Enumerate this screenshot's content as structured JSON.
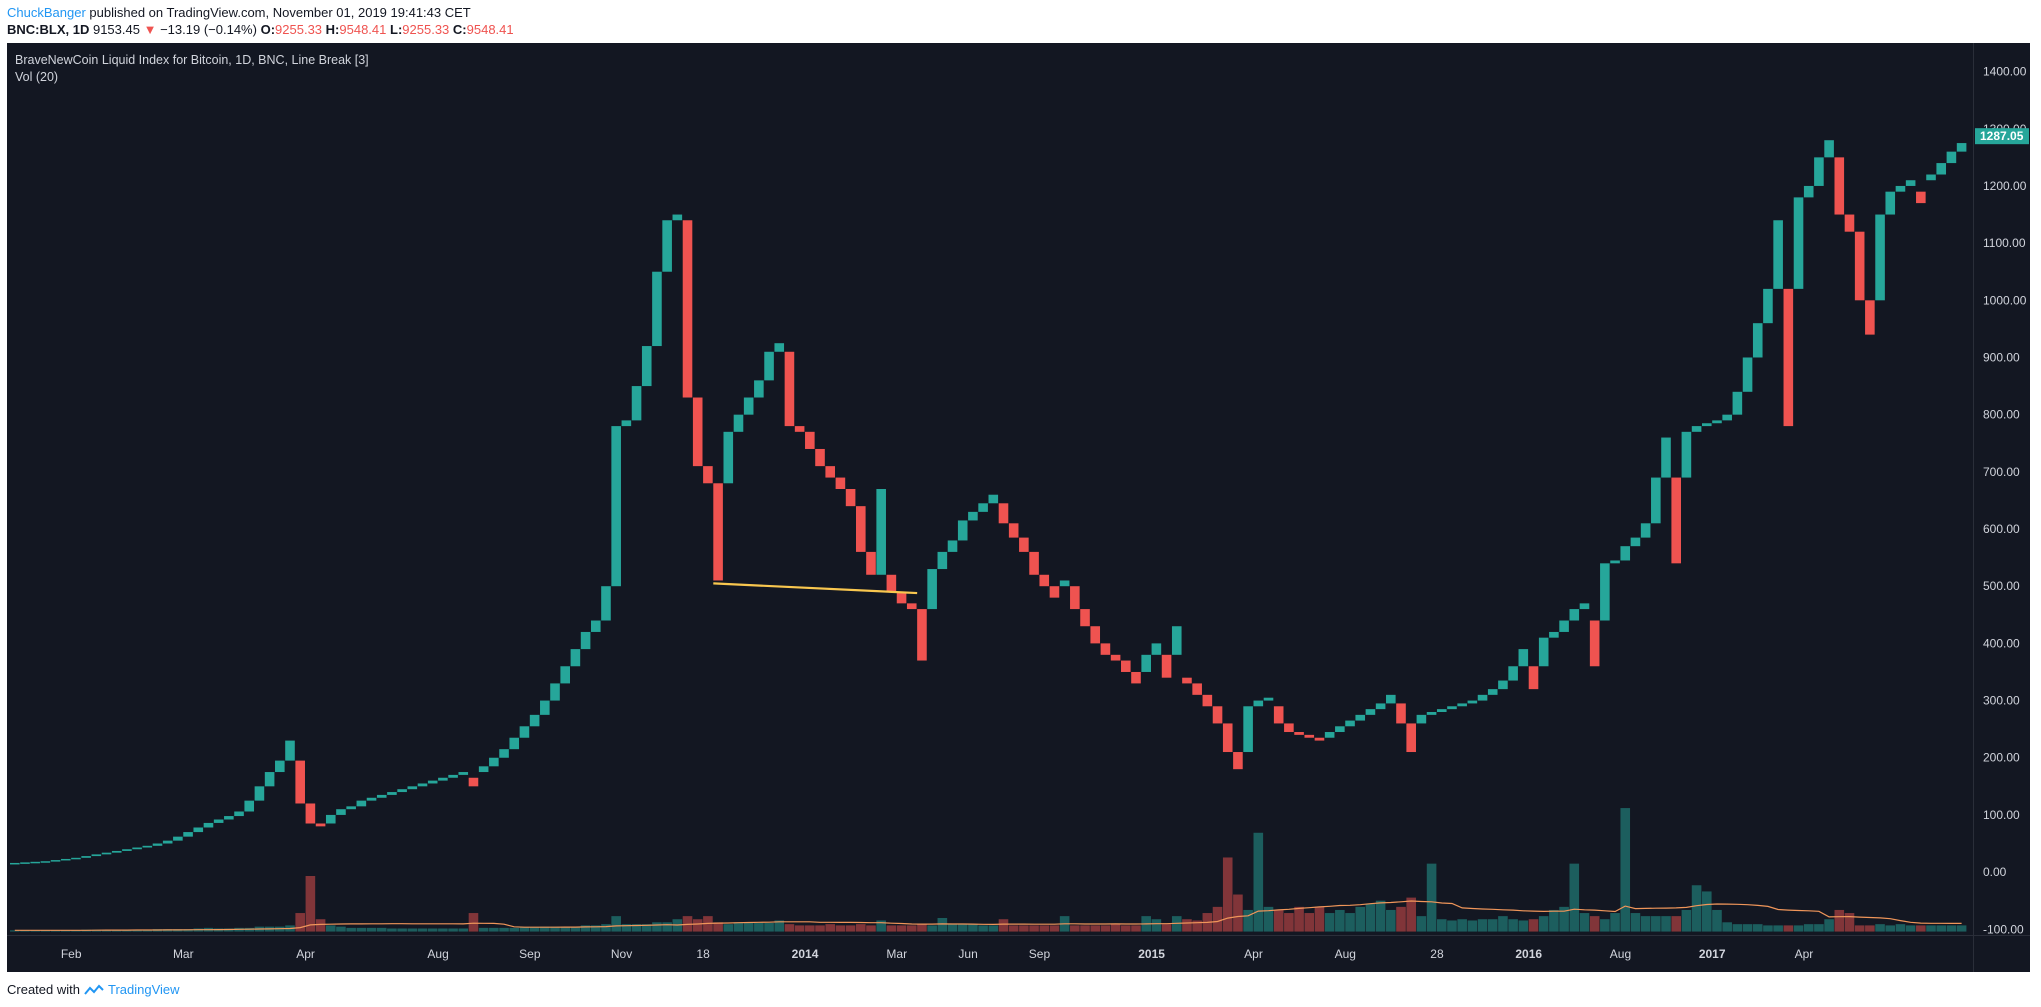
{
  "header": {
    "author": "ChuckBanger",
    "published_text": "published on TradingView.com, November 01, 2019 19:41:43 CET",
    "symbol": "BNC:BLX, 1D",
    "last_price": "9153.45",
    "change_arrow": "▼",
    "change": "−13.19 (−0.14%)",
    "open_label": "O:",
    "open_value": "9255.33",
    "high_label": "H:",
    "high_value": "9548.41",
    "low_label": "L:",
    "low_value": "9255.33",
    "close_label": "C:",
    "close_value": "9548.41"
  },
  "legend": {
    "title": "BraveNewCoin Liquid Index for Bitcoin, 1D, BNC, Line Break [3]",
    "volume": "Vol (20)"
  },
  "footer": {
    "created_with": "Created with",
    "brand": "TradingView"
  },
  "colors": {
    "background": "#131722",
    "up": "#26a69a",
    "down": "#ef5350",
    "trendline": "#f9c74f",
    "volume_ma": "#f0965a",
    "axis_text": "#d1d4dc",
    "price_tag": "#26a69a"
  },
  "chart_data": {
    "type": "line-break",
    "title": "BraveNewCoin Liquid Index for Bitcoin, 1D, BNC, Line Break [3]",
    "ylim": [
      -110,
      1450
    ],
    "y_ticks": [
      "1400.00",
      "1300.00",
      "1200.00",
      "1100.00",
      "1000.00",
      "900.00",
      "800.00",
      "700.00",
      "600.00",
      "500.00",
      "400.00",
      "300.00",
      "200.00",
      "100.00",
      "0.00",
      "-100.00"
    ],
    "y_tick_values": [
      1400,
      1300,
      1200,
      1100,
      1000,
      900,
      800,
      700,
      600,
      500,
      400,
      300,
      200,
      100,
      0,
      -100
    ],
    "x_labels": [
      "Feb",
      "Mar",
      "Apr",
      "Aug",
      "Sep",
      "Nov",
      "18",
      "2014",
      "Mar",
      "Jun",
      "Sep",
      "2015",
      "Apr",
      "Aug",
      "28",
      "2016",
      "Aug",
      "2017",
      "Apr"
    ],
    "x_label_bricks": [
      6,
      17,
      29,
      42,
      51,
      60,
      68,
      78,
      87,
      94,
      101,
      112,
      122,
      131,
      140,
      149,
      158,
      167,
      176
    ],
    "last_price_tag": "1287.05",
    "last_price_value": 1287.05,
    "trendline": {
      "start_brick": 69,
      "start_value": 505,
      "end_brick": 89,
      "end_value": 488
    },
    "bricks": [
      [
        "up",
        15,
        16
      ],
      [
        "up",
        16,
        17
      ],
      [
        "up",
        17,
        18
      ],
      [
        "up",
        18,
        19
      ],
      [
        "up",
        19,
        21
      ],
      [
        "up",
        21,
        23
      ],
      [
        "up",
        23,
        25
      ],
      [
        "up",
        25,
        28
      ],
      [
        "up",
        28,
        31
      ],
      [
        "up",
        31,
        34
      ],
      [
        "up",
        34,
        37
      ],
      [
        "up",
        37,
        40
      ],
      [
        "up",
        40,
        43
      ],
      [
        "up",
        43,
        46
      ],
      [
        "up",
        46,
        50
      ],
      [
        "up",
        50,
        55
      ],
      [
        "up",
        55,
        62
      ],
      [
        "up",
        62,
        70
      ],
      [
        "up",
        70,
        78
      ],
      [
        "up",
        78,
        86
      ],
      [
        "up",
        86,
        92
      ],
      [
        "up",
        92,
        98
      ],
      [
        "up",
        98,
        106
      ],
      [
        "up",
        106,
        125
      ],
      [
        "up",
        125,
        150
      ],
      [
        "up",
        150,
        175
      ],
      [
        "up",
        175,
        195
      ],
      [
        "up",
        195,
        230
      ],
      [
        "down",
        195,
        120
      ],
      [
        "down",
        120,
        85
      ],
      [
        "down",
        85,
        80
      ],
      [
        "up",
        85,
        100
      ],
      [
        "up",
        100,
        110
      ],
      [
        "up",
        110,
        115
      ],
      [
        "up",
        115,
        125
      ],
      [
        "up",
        125,
        130
      ],
      [
        "up",
        130,
        135
      ],
      [
        "up",
        135,
        140
      ],
      [
        "up",
        140,
        145
      ],
      [
        "up",
        145,
        150
      ],
      [
        "up",
        150,
        155
      ],
      [
        "up",
        155,
        160
      ],
      [
        "up",
        160,
        165
      ],
      [
        "up",
        165,
        170
      ],
      [
        "up",
        170,
        175
      ],
      [
        "down",
        165,
        150
      ],
      [
        "up",
        175,
        185
      ],
      [
        "up",
        185,
        200
      ],
      [
        "up",
        200,
        215
      ],
      [
        "up",
        215,
        235
      ],
      [
        "up",
        235,
        255
      ],
      [
        "up",
        255,
        275
      ],
      [
        "up",
        275,
        300
      ],
      [
        "up",
        300,
        330
      ],
      [
        "up",
        330,
        360
      ],
      [
        "up",
        360,
        390
      ],
      [
        "up",
        390,
        420
      ],
      [
        "up",
        420,
        440
      ],
      [
        "up",
        440,
        500
      ],
      [
        "up",
        500,
        780
      ],
      [
        "up",
        780,
        790
      ],
      [
        "up",
        790,
        850
      ],
      [
        "up",
        850,
        920
      ],
      [
        "up",
        920,
        1050
      ],
      [
        "up",
        1050,
        1140
      ],
      [
        "up",
        1140,
        1150
      ],
      [
        "down",
        1140,
        830
      ],
      [
        "down",
        830,
        710
      ],
      [
        "down",
        710,
        680
      ],
      [
        "down",
        680,
        510
      ],
      [
        "up",
        680,
        770
      ],
      [
        "up",
        770,
        800
      ],
      [
        "up",
        800,
        830
      ],
      [
        "up",
        830,
        860
      ],
      [
        "up",
        860,
        910
      ],
      [
        "up",
        910,
        925
      ],
      [
        "down",
        910,
        780
      ],
      [
        "down",
        780,
        770
      ],
      [
        "down",
        770,
        740
      ],
      [
        "down",
        740,
        710
      ],
      [
        "down",
        710,
        690
      ],
      [
        "down",
        690,
        670
      ],
      [
        "down",
        670,
        640
      ],
      [
        "down",
        640,
        560
      ],
      [
        "down",
        560,
        520
      ],
      [
        "up",
        520,
        670
      ],
      [
        "down",
        520,
        490
      ],
      [
        "down",
        490,
        470
      ],
      [
        "down",
        470,
        460
      ],
      [
        "down",
        460,
        370
      ],
      [
        "up",
        460,
        530
      ],
      [
        "up",
        530,
        560
      ],
      [
        "up",
        560,
        580
      ],
      [
        "up",
        580,
        615
      ],
      [
        "up",
        615,
        630
      ],
      [
        "up",
        630,
        645
      ],
      [
        "up",
        645,
        660
      ],
      [
        "down",
        645,
        610
      ],
      [
        "down",
        610,
        585
      ],
      [
        "down",
        585,
        560
      ],
      [
        "down",
        560,
        520
      ],
      [
        "down",
        520,
        500
      ],
      [
        "down",
        500,
        480
      ],
      [
        "up",
        500,
        510
      ],
      [
        "down",
        500,
        460
      ],
      [
        "down",
        460,
        430
      ],
      [
        "down",
        430,
        400
      ],
      [
        "down",
        400,
        380
      ],
      [
        "down",
        380,
        370
      ],
      [
        "down",
        370,
        350
      ],
      [
        "down",
        350,
        330
      ],
      [
        "up",
        350,
        380
      ],
      [
        "up",
        380,
        400
      ],
      [
        "down",
        380,
        340
      ],
      [
        "up",
        380,
        430
      ],
      [
        "down",
        340,
        330
      ],
      [
        "down",
        330,
        310
      ],
      [
        "down",
        310,
        290
      ],
      [
        "down",
        290,
        260
      ],
      [
        "down",
        260,
        210
      ],
      [
        "down",
        210,
        180
      ],
      [
        "up",
        210,
        290
      ],
      [
        "up",
        290,
        300
      ],
      [
        "up",
        300,
        305
      ],
      [
        "down",
        290,
        260
      ],
      [
        "down",
        260,
        245
      ],
      [
        "down",
        245,
        240
      ],
      [
        "down",
        240,
        235
      ],
      [
        "down",
        235,
        230
      ],
      [
        "up",
        235,
        245
      ],
      [
        "up",
        245,
        255
      ],
      [
        "up",
        255,
        265
      ],
      [
        "up",
        265,
        275
      ],
      [
        "up",
        275,
        285
      ],
      [
        "up",
        285,
        295
      ],
      [
        "up",
        295,
        310
      ],
      [
        "down",
        295,
        260
      ],
      [
        "down",
        260,
        210
      ],
      [
        "up",
        260,
        275
      ],
      [
        "up",
        275,
        280
      ],
      [
        "up",
        280,
        285
      ],
      [
        "up",
        285,
        290
      ],
      [
        "up",
        290,
        295
      ],
      [
        "up",
        295,
        300
      ],
      [
        "up",
        300,
        310
      ],
      [
        "up",
        310,
        320
      ],
      [
        "up",
        320,
        335
      ],
      [
        "up",
        335,
        360
      ],
      [
        "up",
        360,
        390
      ],
      [
        "down",
        360,
        320
      ],
      [
        "up",
        360,
        410
      ],
      [
        "up",
        410,
        420
      ],
      [
        "up",
        420,
        440
      ],
      [
        "up",
        440,
        460
      ],
      [
        "up",
        460,
        470
      ],
      [
        "down",
        440,
        360
      ],
      [
        "up",
        440,
        540
      ],
      [
        "up",
        540,
        545
      ],
      [
        "up",
        545,
        570
      ],
      [
        "up",
        570,
        585
      ],
      [
        "up",
        585,
        610
      ],
      [
        "up",
        610,
        690
      ],
      [
        "up",
        690,
        760
      ],
      [
        "down",
        690,
        540
      ],
      [
        "up",
        690,
        770
      ],
      [
        "up",
        770,
        780
      ],
      [
        "up",
        780,
        785
      ],
      [
        "up",
        785,
        790
      ],
      [
        "up",
        790,
        800
      ],
      [
        "up",
        800,
        840
      ],
      [
        "up",
        840,
        900
      ],
      [
        "up",
        900,
        960
      ],
      [
        "up",
        960,
        1020
      ],
      [
        "up",
        1020,
        1140
      ],
      [
        "down",
        1020,
        780
      ],
      [
        "up",
        1020,
        1180
      ],
      [
        "up",
        1180,
        1200
      ],
      [
        "up",
        1200,
        1250
      ],
      [
        "up",
        1250,
        1280
      ],
      [
        "down",
        1250,
        1150
      ],
      [
        "down",
        1150,
        1120
      ],
      [
        "down",
        1120,
        1000
      ],
      [
        "down",
        1000,
        940
      ],
      [
        "up",
        1000,
        1150
      ],
      [
        "up",
        1150,
        1190
      ],
      [
        "up",
        1190,
        1200
      ],
      [
        "up",
        1200,
        1210
      ],
      [
        "down",
        1190,
        1170
      ],
      [
        "up",
        1210,
        1220
      ],
      [
        "up",
        1220,
        1240
      ],
      [
        "up",
        1240,
        1260
      ],
      [
        "up",
        1260,
        1275
      ]
    ],
    "volume": [
      2,
      2,
      2,
      2,
      2,
      2,
      2,
      3,
      3,
      3,
      3,
      3,
      3,
      3,
      4,
      4,
      4,
      4,
      5,
      6,
      5,
      5,
      6,
      6,
      8,
      8,
      8,
      10,
      30,
      90,
      20,
      10,
      8,
      6,
      6,
      6,
      6,
      5,
      5,
      5,
      5,
      5,
      5,
      5,
      5,
      30,
      6,
      6,
      6,
      6,
      7,
      7,
      8,
      8,
      8,
      8,
      10,
      10,
      12,
      25,
      12,
      12,
      12,
      15,
      15,
      20,
      25,
      20,
      25,
      15,
      12,
      15,
      14,
      14,
      14,
      18,
      12,
      10,
      10,
      10,
      12,
      10,
      10,
      12,
      10,
      18,
      10,
      10,
      10,
      12,
      10,
      22,
      12,
      12,
      12,
      10,
      10,
      20,
      10,
      10,
      10,
      10,
      10,
      25,
      10,
      10,
      10,
      10,
      12,
      10,
      10,
      25,
      20,
      12,
      25,
      20,
      18,
      30,
      40,
      120,
      60,
      35,
      160,
      40,
      35,
      30,
      40,
      30,
      40,
      30,
      35,
      30,
      40,
      45,
      50,
      35,
      40,
      55,
      25,
      110,
      20,
      18,
      20,
      18,
      20,
      20,
      25,
      20,
      18,
      20,
      25,
      35,
      40,
      110,
      30,
      25,
      20,
      30,
      200,
      30,
      25,
      25,
      25,
      25,
      35,
      75,
      65,
      35,
      15,
      12,
      12,
      12,
      10,
      10,
      10,
      10,
      12,
      12,
      20,
      35,
      30,
      10,
      10,
      12,
      10,
      12,
      10,
      10,
      10,
      10,
      10,
      10
    ]
  }
}
